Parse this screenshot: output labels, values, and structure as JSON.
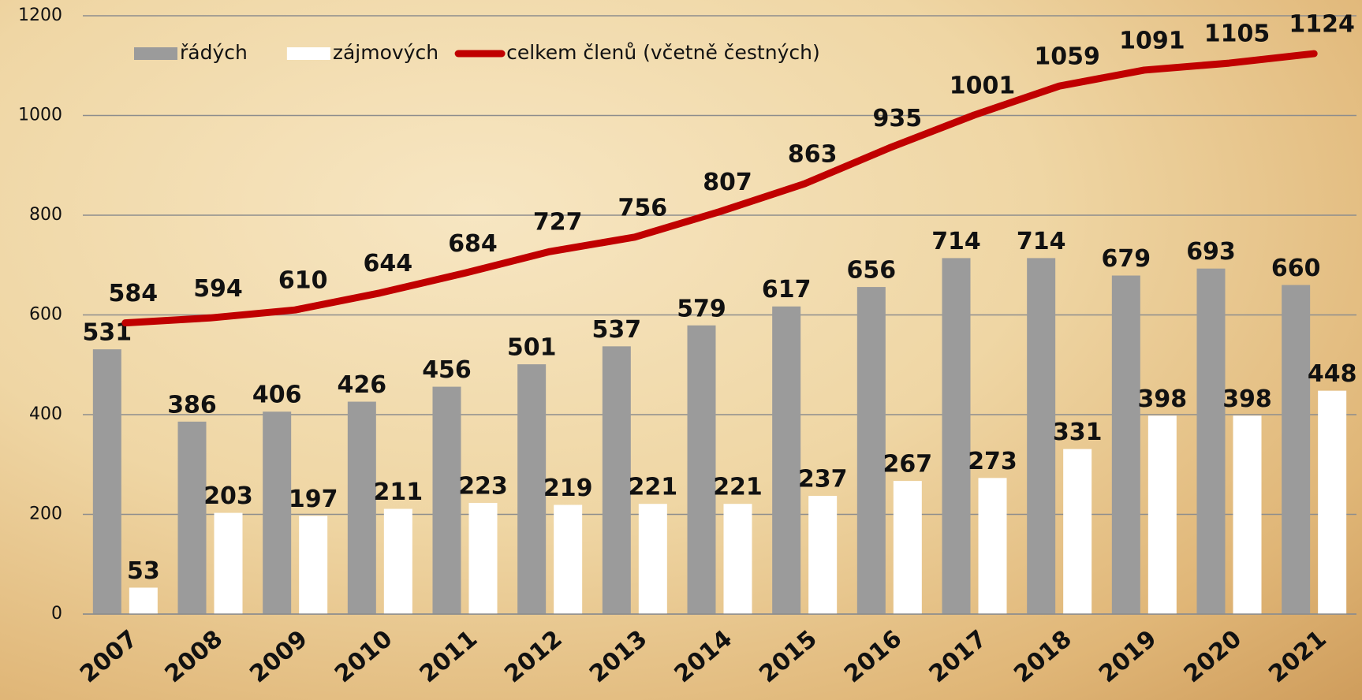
{
  "chart_data": {
    "type": "bar",
    "categories": [
      "2007",
      "2008",
      "2009",
      "2010",
      "2011",
      "2012",
      "2013",
      "2014",
      "2015",
      "2016",
      "2017",
      "2018",
      "2019",
      "2020",
      "2021"
    ],
    "series": [
      {
        "name": "řádých",
        "color": "#9b9b9b",
        "type": "bar",
        "values": [
          531,
          386,
          406,
          426,
          456,
          501,
          537,
          579,
          617,
          656,
          714,
          714,
          679,
          693,
          660
        ]
      },
      {
        "name": "zájmových",
        "color": "#ffffff",
        "type": "bar",
        "values": [
          53,
          203,
          197,
          211,
          223,
          219,
          221,
          221,
          237,
          267,
          273,
          331,
          398,
          398,
          448
        ]
      },
      {
        "name": "celkem členů (včetně čestných)",
        "color": "#c00000",
        "type": "line",
        "values": [
          584,
          594,
          610,
          644,
          684,
          727,
          756,
          807,
          863,
          935,
          1001,
          1059,
          1091,
          1105,
          1124
        ]
      }
    ],
    "ylim": [
      0,
      1200
    ],
    "yticks": [
      0,
      200,
      400,
      600,
      800,
      1000,
      1200
    ],
    "grid": true,
    "legend": "top-left"
  }
}
